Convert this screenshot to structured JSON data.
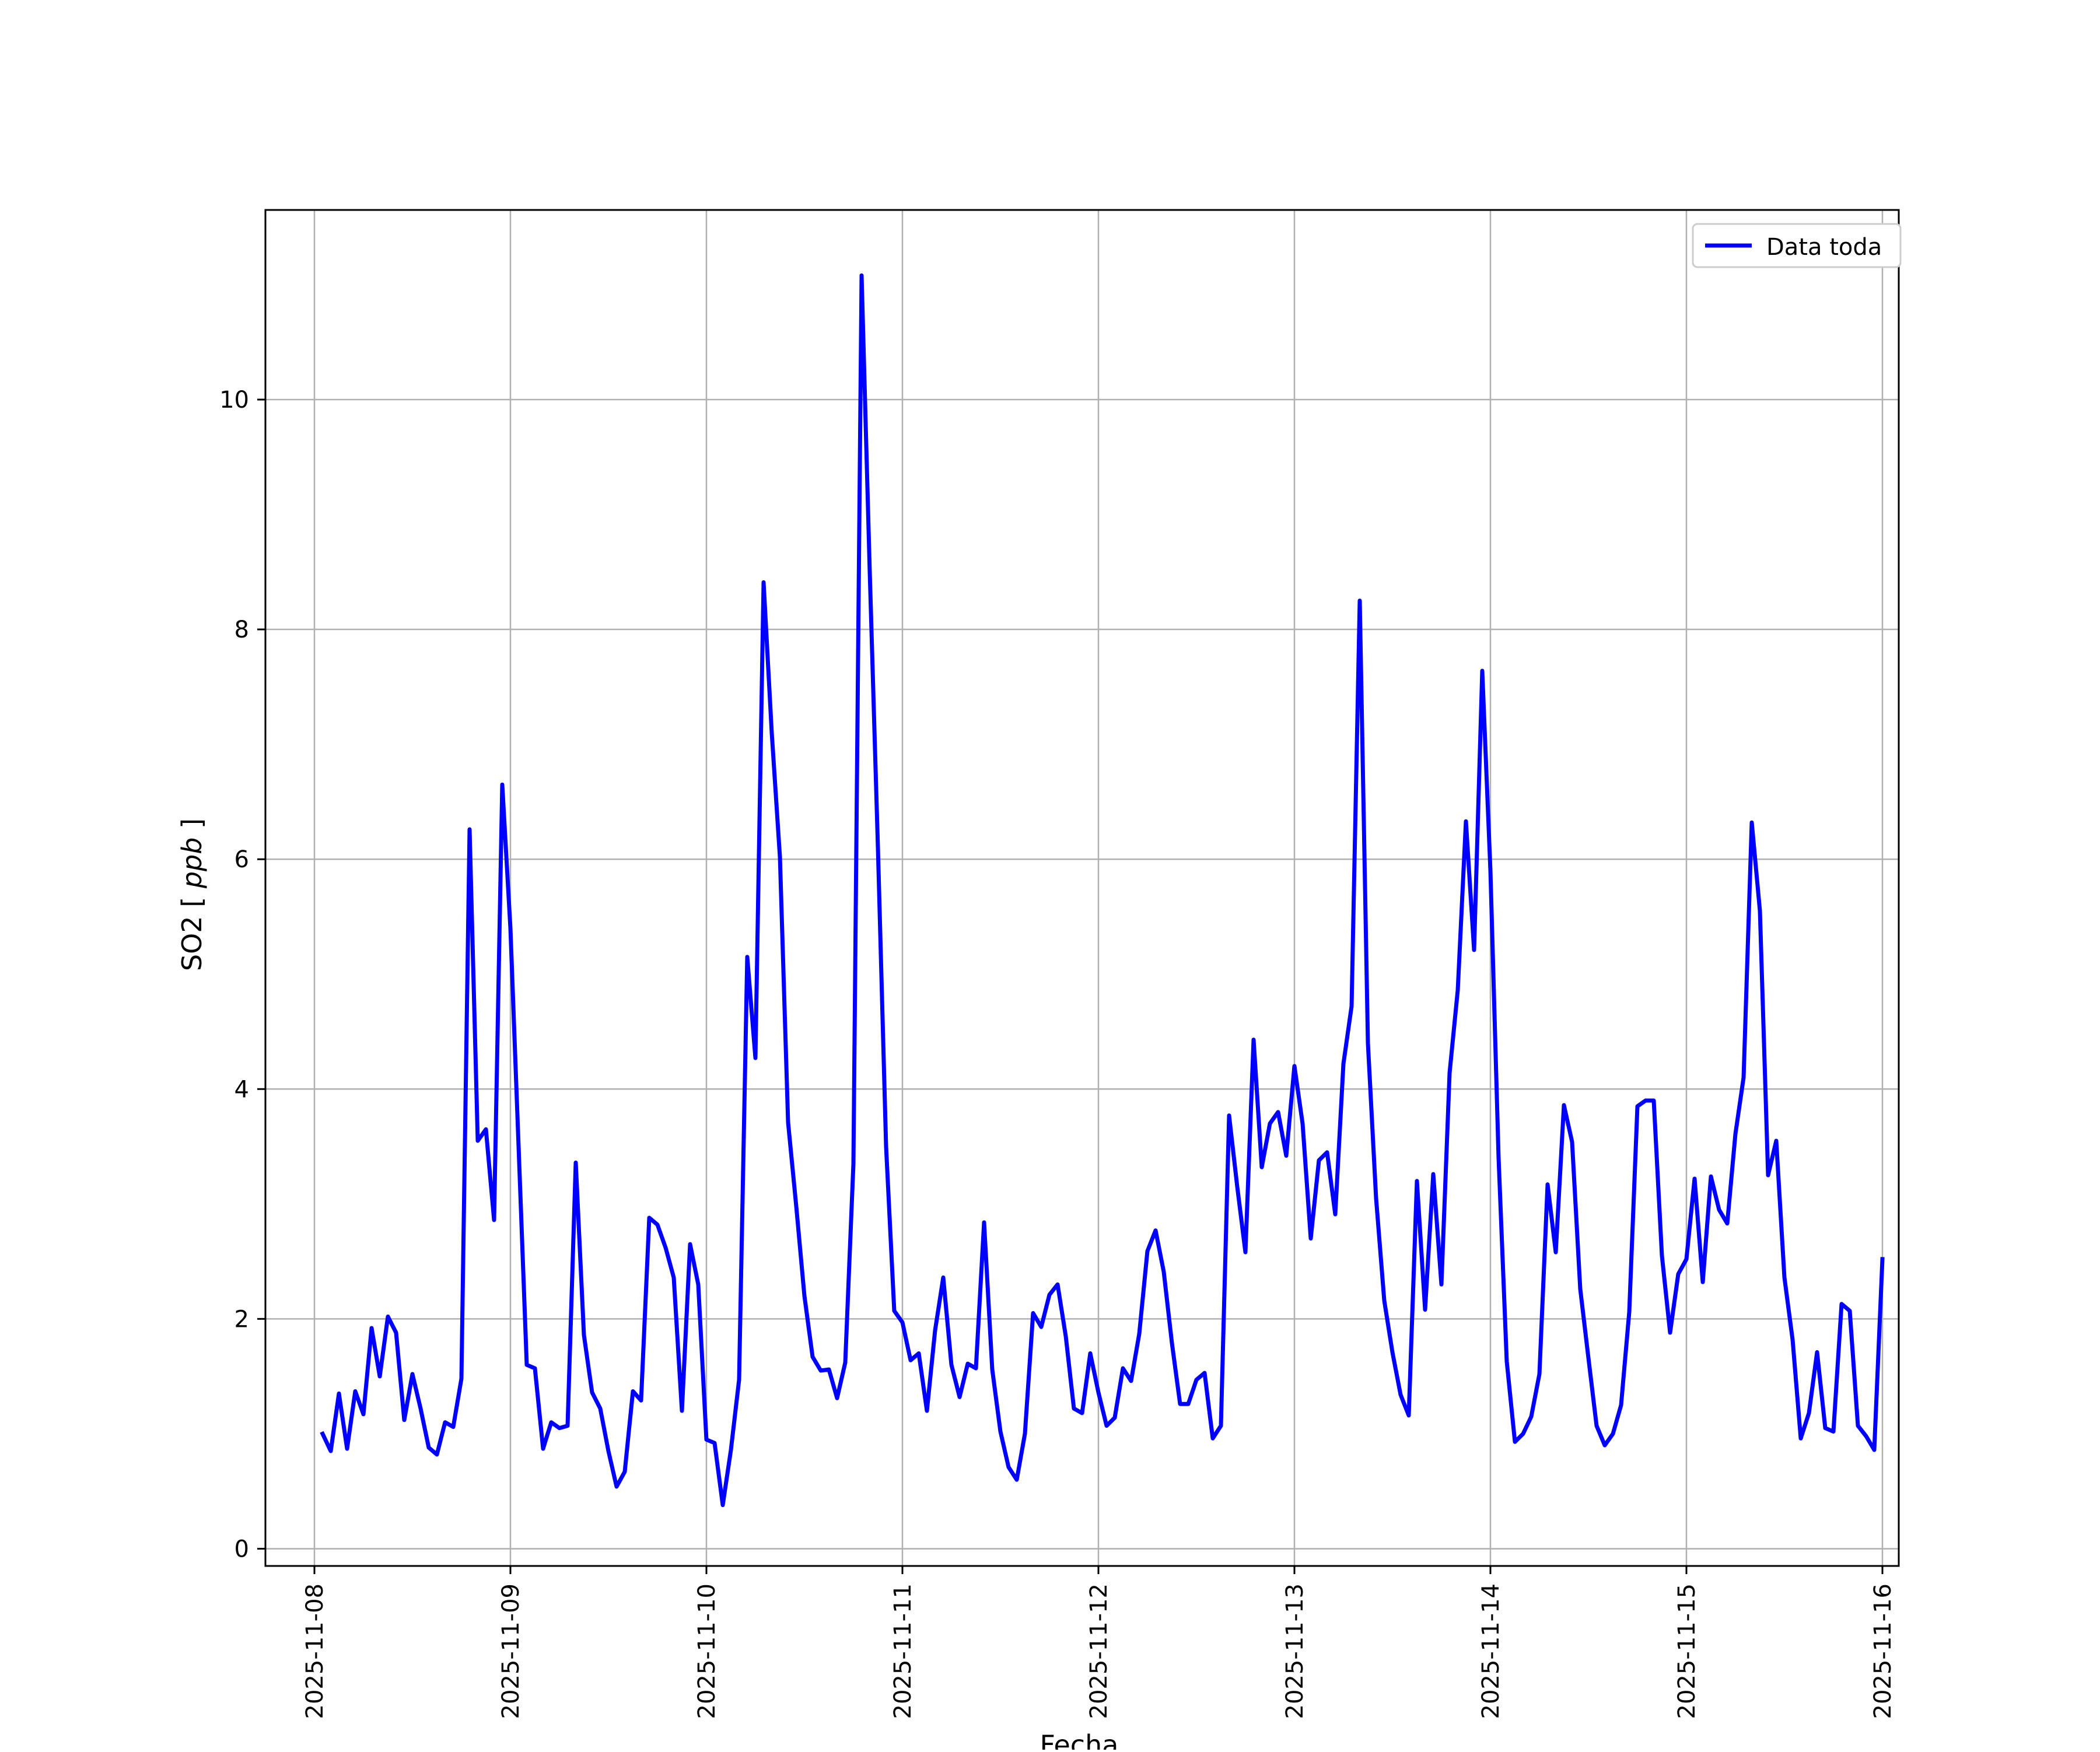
{
  "chart_data": {
    "type": "line",
    "title": "",
    "xlabel": "Fecha",
    "ylabel_text": "SO2",
    "ylabel_unit": "ppb",
    "x_range": [
      "2025-11-07T18:00",
      "2025-11-16T02:00"
    ],
    "ylim": [
      -0.15,
      11.65
    ],
    "grid": true,
    "legend_position": "upper-right",
    "x_ticks": [
      "2025-11-08",
      "2025-11-09",
      "2025-11-10",
      "2025-11-11",
      "2025-11-12",
      "2025-11-13",
      "2025-11-14",
      "2025-11-15",
      "2025-11-16"
    ],
    "y_ticks": [
      0,
      2,
      4,
      6,
      8,
      10
    ],
    "series": [
      {
        "name": "Data toda",
        "color": "#0000ff",
        "x": [
          "2025-11-08T01:00",
          "2025-11-08T02:00",
          "2025-11-08T03:00",
          "2025-11-08T04:00",
          "2025-11-08T05:00",
          "2025-11-08T06:00",
          "2025-11-08T07:00",
          "2025-11-08T08:00",
          "2025-11-08T09:00",
          "2025-11-08T10:00",
          "2025-11-08T11:00",
          "2025-11-08T12:00",
          "2025-11-08T13:00",
          "2025-11-08T14:00",
          "2025-11-08T15:00",
          "2025-11-08T16:00",
          "2025-11-08T17:00",
          "2025-11-08T18:00",
          "2025-11-08T19:00",
          "2025-11-08T20:00",
          "2025-11-08T21:00",
          "2025-11-08T22:00",
          "2025-11-08T23:00",
          "2025-11-09T00:00",
          "2025-11-09T01:00",
          "2025-11-09T02:00",
          "2025-11-09T03:00",
          "2025-11-09T04:00",
          "2025-11-09T05:00",
          "2025-11-09T06:00",
          "2025-11-09T07:00",
          "2025-11-09T08:00",
          "2025-11-09T09:00",
          "2025-11-09T10:00",
          "2025-11-09T11:00",
          "2025-11-09T12:00",
          "2025-11-09T13:00",
          "2025-11-09T14:00",
          "2025-11-09T15:00",
          "2025-11-09T16:00",
          "2025-11-09T17:00",
          "2025-11-09T18:00",
          "2025-11-09T19:00",
          "2025-11-09T20:00",
          "2025-11-09T21:00",
          "2025-11-09T22:00",
          "2025-11-09T23:00",
          "2025-11-10T00:00",
          "2025-11-10T01:00",
          "2025-11-10T02:00",
          "2025-11-10T03:00",
          "2025-11-10T04:00",
          "2025-11-10T05:00",
          "2025-11-10T06:00",
          "2025-11-10T07:00",
          "2025-11-10T08:00",
          "2025-11-10T09:00",
          "2025-11-10T10:00",
          "2025-11-10T11:00",
          "2025-11-10T12:00",
          "2025-11-10T13:00",
          "2025-11-10T14:00",
          "2025-11-10T15:00",
          "2025-11-10T16:00",
          "2025-11-10T17:00",
          "2025-11-10T18:00",
          "2025-11-10T19:00",
          "2025-11-10T20:00",
          "2025-11-10T21:00",
          "2025-11-10T22:00",
          "2025-11-10T23:00",
          "2025-11-11T00:00",
          "2025-11-11T01:00",
          "2025-11-11T02:00",
          "2025-11-11T03:00",
          "2025-11-11T04:00",
          "2025-11-11T05:00",
          "2025-11-11T06:00",
          "2025-11-11T07:00",
          "2025-11-11T08:00",
          "2025-11-11T09:00",
          "2025-11-11T10:00",
          "2025-11-11T11:00",
          "2025-11-11T12:00",
          "2025-11-11T13:00",
          "2025-11-11T14:00",
          "2025-11-11T15:00",
          "2025-11-11T16:00",
          "2025-11-11T17:00",
          "2025-11-11T18:00",
          "2025-11-11T19:00",
          "2025-11-11T20:00",
          "2025-11-11T21:00",
          "2025-11-11T22:00",
          "2025-11-11T23:00",
          "2025-11-12T00:00",
          "2025-11-12T01:00",
          "2025-11-12T02:00",
          "2025-11-12T03:00",
          "2025-11-12T04:00",
          "2025-11-12T05:00",
          "2025-11-12T06:00",
          "2025-11-12T07:00",
          "2025-11-12T08:00",
          "2025-11-12T09:00",
          "2025-11-12T10:00",
          "2025-11-12T11:00",
          "2025-11-12T12:00",
          "2025-11-12T13:00",
          "2025-11-12T14:00",
          "2025-11-12T15:00",
          "2025-11-12T16:00",
          "2025-11-12T17:00",
          "2025-11-12T18:00",
          "2025-11-12T19:00",
          "2025-11-12T20:00",
          "2025-11-12T21:00",
          "2025-11-12T22:00",
          "2025-11-12T23:00",
          "2025-11-13T00:00",
          "2025-11-13T01:00",
          "2025-11-13T02:00",
          "2025-11-13T03:00",
          "2025-11-13T04:00",
          "2025-11-13T05:00",
          "2025-11-13T06:00",
          "2025-11-13T07:00",
          "2025-11-13T08:00",
          "2025-11-13T09:00",
          "2025-11-13T10:00",
          "2025-11-13T11:00",
          "2025-11-13T12:00",
          "2025-11-13T13:00",
          "2025-11-13T14:00",
          "2025-11-13T15:00",
          "2025-11-13T16:00",
          "2025-11-13T17:00",
          "2025-11-13T18:00",
          "2025-11-13T19:00",
          "2025-11-13T20:00",
          "2025-11-13T21:00",
          "2025-11-13T22:00",
          "2025-11-13T23:00",
          "2025-11-14T00:00",
          "2025-11-14T01:00",
          "2025-11-14T02:00",
          "2025-11-14T03:00",
          "2025-11-14T04:00",
          "2025-11-14T05:00",
          "2025-11-14T06:00",
          "2025-11-14T07:00",
          "2025-11-14T08:00",
          "2025-11-14T09:00",
          "2025-11-14T10:00",
          "2025-11-14T11:00",
          "2025-11-14T12:00",
          "2025-11-14T13:00",
          "2025-11-14T14:00",
          "2025-11-14T15:00",
          "2025-11-14T16:00",
          "2025-11-14T17:00",
          "2025-11-14T18:00",
          "2025-11-14T19:00",
          "2025-11-14T20:00",
          "2025-11-14T21:00",
          "2025-11-14T22:00",
          "2025-11-14T23:00",
          "2025-11-15T00:00",
          "2025-11-15T01:00",
          "2025-11-15T02:00",
          "2025-11-15T03:00",
          "2025-11-15T04:00",
          "2025-11-15T05:00",
          "2025-11-15T06:00",
          "2025-11-15T07:00",
          "2025-11-15T08:00",
          "2025-11-15T09:00",
          "2025-11-15T10:00",
          "2025-11-15T11:00",
          "2025-11-15T12:00",
          "2025-11-15T13:00",
          "2025-11-15T14:00",
          "2025-11-15T15:00",
          "2025-11-15T16:00",
          "2025-11-15T17:00",
          "2025-11-15T18:00",
          "2025-11-15T19:00",
          "2025-11-15T20:00",
          "2025-11-15T21:00",
          "2025-11-15T22:00",
          "2025-11-15T23:00",
          "2025-11-16T00:00"
        ],
        "values": [
          1.0,
          0.85,
          1.35,
          0.87,
          1.37,
          1.17,
          1.92,
          1.5,
          2.02,
          1.88,
          1.12,
          1.52,
          1.22,
          0.88,
          0.82,
          1.1,
          1.06,
          1.48,
          6.26,
          3.55,
          3.65,
          2.86,
          6.65,
          5.4,
          3.5,
          1.6,
          1.57,
          0.87,
          1.1,
          1.05,
          1.07,
          3.36,
          1.86,
          1.36,
          1.22,
          0.85,
          0.54,
          0.67,
          1.37,
          1.29,
          2.88,
          2.82,
          2.62,
          2.36,
          1.2,
          2.65,
          2.3,
          0.95,
          0.92,
          0.38,
          0.86,
          1.47,
          5.15,
          4.27,
          8.41,
          7.1,
          6.02,
          3.71,
          2.98,
          2.2,
          1.67,
          1.55,
          1.56,
          1.31,
          1.62,
          3.35,
          11.08,
          8.5,
          6.1,
          3.5,
          2.07,
          1.97,
          1.64,
          1.7,
          1.2,
          1.9,
          2.36,
          1.6,
          1.32,
          1.61,
          1.57,
          2.84,
          1.56,
          1.02,
          0.71,
          0.6,
          1.0,
          2.05,
          1.93,
          2.21,
          2.3,
          1.85,
          1.22,
          1.18,
          1.7,
          1.36,
          1.07,
          1.14,
          1.57,
          1.46,
          1.87,
          2.59,
          2.77,
          2.41,
          1.79,
          1.26,
          1.26,
          1.47,
          1.53,
          0.96,
          1.07,
          3.77,
          3.15,
          2.58,
          4.43,
          3.32,
          3.7,
          3.8,
          3.42,
          4.2,
          3.7,
          2.7,
          3.38,
          3.45,
          2.91,
          4.22,
          4.72,
          8.25,
          4.4,
          3.05,
          2.16,
          1.71,
          1.34,
          1.16,
          3.2,
          2.08,
          3.26,
          2.3,
          4.14,
          4.86,
          6.33,
          5.21,
          7.64,
          5.9,
          3.4,
          1.63,
          0.93,
          1.0,
          1.15,
          1.52,
          3.17,
          2.58,
          3.86,
          3.54,
          2.26,
          1.66,
          1.07,
          0.9,
          1.0,
          1.25,
          2.06,
          3.85,
          3.9,
          3.9,
          2.55,
          1.88,
          2.39,
          2.52,
          3.22,
          2.32,
          3.24,
          2.95,
          2.83,
          3.61,
          4.1,
          6.32,
          5.55,
          3.25,
          3.55,
          2.36,
          1.82,
          0.96,
          1.18,
          1.71,
          1.05,
          1.02,
          2.13,
          2.07,
          1.07,
          0.98,
          0.86,
          2.52
        ]
      }
    ]
  }
}
